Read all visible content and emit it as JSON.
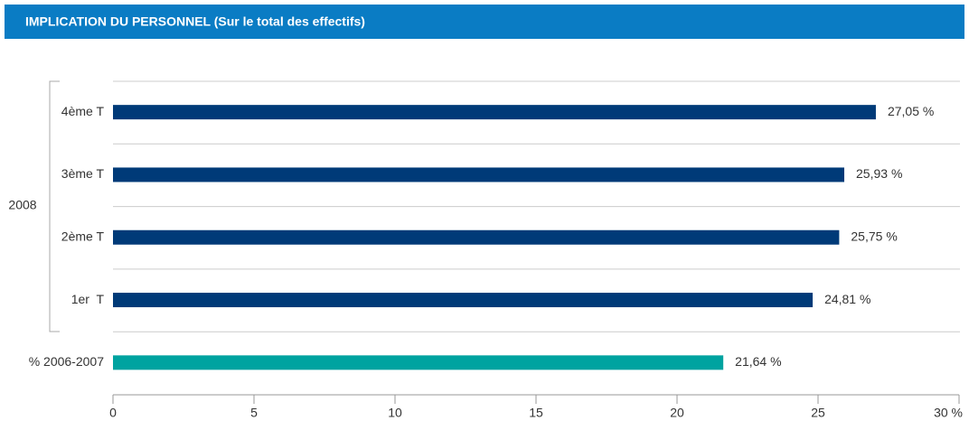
{
  "chart_data": {
    "type": "bar",
    "orientation": "horizontal",
    "title": "IMPLICATION DU PERSONNEL (Sur le total des effectifs)",
    "group_label": "2008",
    "categories": [
      "4ème T",
      "3ème T",
      "2ème T",
      "1er  T",
      "% 2006-2007"
    ],
    "values": [
      27.05,
      25.93,
      25.75,
      24.81,
      21.64
    ],
    "value_labels": [
      "27,05 %",
      "25,93 %",
      "25,75 %",
      "24,81 %",
      "21,64 %"
    ],
    "colors": [
      "#003a78",
      "#003a78",
      "#003a78",
      "#003a78",
      "#00a3a0"
    ],
    "xlim": [
      0,
      30
    ],
    "xticks": [
      0,
      5,
      10,
      15,
      20,
      25,
      {
        "value": 30,
        "label": "30 %"
      }
    ]
  }
}
